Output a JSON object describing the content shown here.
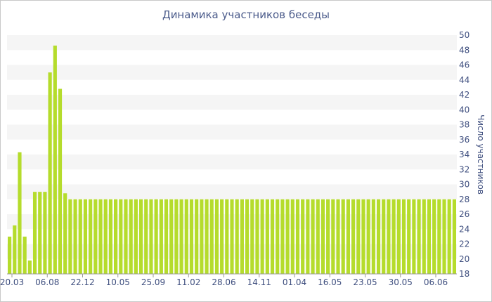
{
  "chart_data": {
    "type": "bar",
    "title": "Динамика участников беседы",
    "ylabel": "Число участников",
    "xlabel": "",
    "ylim": [
      18,
      50
    ],
    "y_ticks": [
      18,
      20,
      22,
      24,
      26,
      28,
      30,
      32,
      34,
      36,
      38,
      40,
      42,
      44,
      46,
      48,
      50
    ],
    "x_tick_labels": [
      "20.03",
      "06.08",
      "22.12",
      "10.05",
      "25.09",
      "11.02",
      "28.06",
      "14.11",
      "01.04",
      "16.05",
      "23.05",
      "30.05",
      "06.06"
    ],
    "grid": "alternating horizontal bands",
    "color": "#b5dc2c",
    "values": [
      23,
      24.5,
      34.3,
      23,
      19.8,
      29,
      29,
      29,
      45,
      48.6,
      42.8,
      28.8,
      28,
      28,
      28,
      28,
      28,
      28,
      28,
      28,
      28,
      28,
      28,
      28,
      28,
      28,
      28,
      28,
      28,
      28,
      28,
      28,
      28,
      28,
      28,
      28,
      28,
      28,
      28,
      28,
      28,
      28,
      28,
      28,
      28,
      28,
      28,
      28,
      28,
      28,
      28,
      28,
      28,
      28,
      28,
      28,
      28,
      28,
      28,
      28,
      28,
      28,
      28,
      28,
      28,
      28,
      28,
      28,
      28,
      28,
      28,
      28,
      28,
      28,
      28,
      28,
      28,
      28,
      28,
      28,
      28,
      28,
      28,
      28,
      28,
      28,
      28,
      28,
      28
    ]
  }
}
